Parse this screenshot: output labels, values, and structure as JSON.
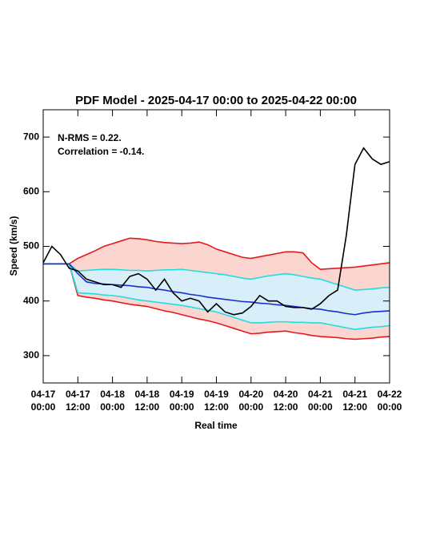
{
  "chart_data": {
    "type": "line",
    "title": "PDF Model - 2025-04-17 00:00 to 2025-04-22 00:00",
    "x_label": "Real time",
    "y_label": "Speed (km/s)",
    "annotations": [
      "N-RMS = 0.22.",
      "Correlation = -0.14."
    ],
    "xlim": [
      0,
      120
    ],
    "ylim": [
      250,
      750
    ],
    "xticks": [
      {
        "value": 0,
        "label": "04-17\n00:00"
      },
      {
        "value": 12,
        "label": "04-17\n12:00"
      },
      {
        "value": 24,
        "label": "04-18\n00:00"
      },
      {
        "value": 36,
        "label": "04-18\n12:00"
      },
      {
        "value": 48,
        "label": "04-19\n00:00"
      },
      {
        "value": 60,
        "label": "04-19\n12:00"
      },
      {
        "value": 72,
        "label": "04-20\n00:00"
      },
      {
        "value": 84,
        "label": "04-20\n12:00"
      },
      {
        "value": 96,
        "label": "04-21\n00:00"
      },
      {
        "value": 108,
        "label": "04-21\n12:00"
      },
      {
        "value": 120,
        "label": "04-22\n00:00"
      }
    ],
    "yticks": [
      300,
      400,
      500,
      600,
      700
    ],
    "x": [
      0,
      3,
      6,
      9,
      12,
      15,
      18,
      21,
      24,
      27,
      30,
      33,
      36,
      39,
      42,
      45,
      48,
      51,
      54,
      57,
      60,
      63,
      66,
      69,
      72,
      75,
      78,
      81,
      84,
      87,
      90,
      93,
      96,
      99,
      102,
      105,
      108,
      111,
      114,
      117,
      120
    ],
    "bands": [
      {
        "color": "#e41a1c",
        "fill": "#fbd5d0",
        "upper": [
          468,
          468,
          468,
          468,
          478,
          485,
          492,
          500,
          505,
          510,
          515,
          514,
          512,
          509,
          507,
          506,
          505,
          506,
          508,
          503,
          495,
          490,
          485,
          480,
          478,
          481,
          484,
          487,
          490,
          490,
          488,
          470,
          458,
          459,
          460,
          461,
          462,
          464,
          466,
          468,
          470
        ],
        "lower": [
          468,
          468,
          468,
          468,
          410,
          407,
          405,
          402,
          400,
          397,
          394,
          392,
          390,
          386,
          382,
          379,
          375,
          371,
          367,
          364,
          360,
          355,
          350,
          345,
          340,
          341,
          343,
          344,
          345,
          342,
          340,
          337,
          335,
          334,
          333,
          331,
          330,
          331,
          332,
          334,
          335
        ]
      },
      {
        "color": "#22dddd",
        "fill": "#d8eef8",
        "upper": [
          468,
          468,
          468,
          468,
          455,
          456,
          457,
          458,
          458,
          457,
          456,
          456,
          455,
          456,
          457,
          457,
          458,
          456,
          454,
          452,
          450,
          448,
          445,
          442,
          440,
          443,
          446,
          448,
          450,
          448,
          445,
          442,
          440,
          435,
          430,
          425,
          420,
          421,
          422,
          424,
          425
        ],
        "lower": [
          468,
          468,
          468,
          468,
          415,
          414,
          413,
          411,
          410,
          408,
          405,
          402,
          400,
          398,
          396,
          394,
          392,
          389,
          386,
          383,
          380,
          375,
          370,
          365,
          360,
          360,
          361,
          362,
          362,
          361,
          361,
          360,
          360,
          357,
          354,
          351,
          348,
          350,
          352,
          353,
          355
        ]
      }
    ],
    "series": [
      {
        "color": "#1a2ecc",
        "values": [
          468,
          468,
          468,
          468,
          450,
          435,
          432,
          431,
          430,
          429,
          428,
          426,
          425,
          422,
          420,
          417,
          415,
          412,
          410,
          407,
          405,
          403,
          401,
          399,
          398,
          396,
          395,
          393,
          392,
          390,
          388,
          386,
          385,
          382,
          380,
          377,
          375,
          378,
          380,
          381,
          382
        ]
      },
      {
        "color": "#000000",
        "values": [
          470,
          500,
          485,
          460,
          455,
          440,
          435,
          430,
          430,
          425,
          445,
          450,
          440,
          420,
          440,
          415,
          400,
          405,
          400,
          380,
          395,
          380,
          375,
          378,
          390,
          410,
          400,
          400,
          390,
          388,
          388,
          385,
          395,
          410,
          420,
          520,
          650,
          680,
          660,
          650,
          655
        ]
      }
    ]
  }
}
